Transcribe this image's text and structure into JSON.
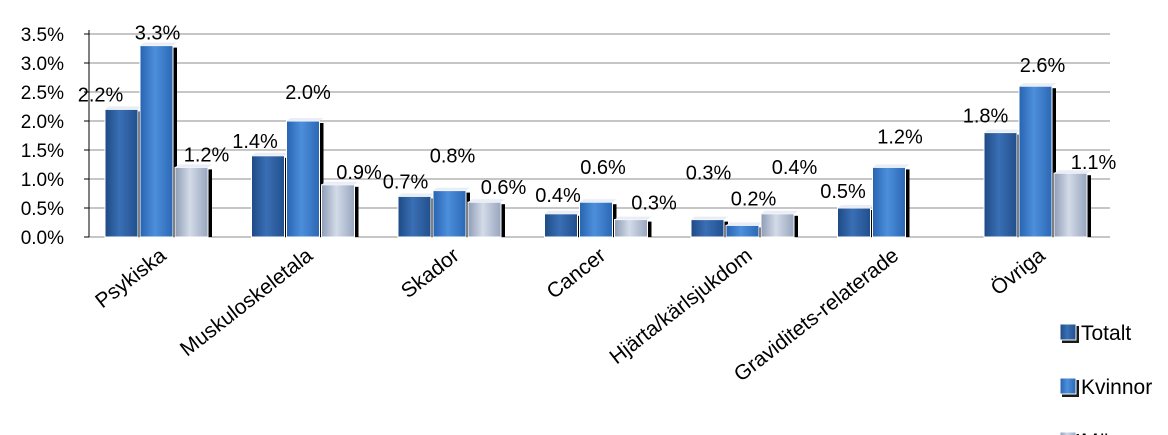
{
  "chart_data": {
    "type": "bar",
    "categories": [
      "Psykiska",
      "Muskuloskeletala",
      "Skador",
      "Cancer",
      "Hjärta/kärlsjukdom",
      "Graviditets-relaterade",
      "Övriga"
    ],
    "series": [
      {
        "name": "Totalt",
        "values": [
          2.2,
          1.4,
          0.7,
          0.4,
          0.3,
          0.5,
          1.8
        ],
        "labels": [
          "2.2%",
          "1.4%",
          "0.7%",
          "0.4%",
          "0.3%",
          "0.5%",
          "1.8%"
        ]
      },
      {
        "name": "Kvinnor",
        "values": [
          3.3,
          2.0,
          0.8,
          0.6,
          0.2,
          1.2,
          2.6
        ],
        "labels": [
          "3.3%",
          "2.0%",
          "0.8%",
          "0.6%",
          "0.2%",
          "1.2%",
          "2.6%"
        ]
      },
      {
        "name": "Män",
        "values": [
          1.2,
          0.9,
          0.6,
          0.3,
          0.4,
          null,
          1.1
        ],
        "labels": [
          "1.2%",
          "0.9%",
          "0.6%",
          "0.3%",
          "0.4%",
          "",
          "1.1%"
        ]
      }
    ],
    "y_ticks": [
      "0.0%",
      "0.5%",
      "1.0%",
      "1.5%",
      "2.0%",
      "2.5%",
      "3.0%",
      "3.5%"
    ],
    "ylim": [
      0,
      3.5
    ],
    "grid": true,
    "legend": "right",
    "colors": {
      "Totalt": "#2f5f9e",
      "Kvinnor": "#3a78c4",
      "Män": "#aab7cc"
    },
    "title": "",
    "xlabel": "",
    "ylabel": ""
  }
}
